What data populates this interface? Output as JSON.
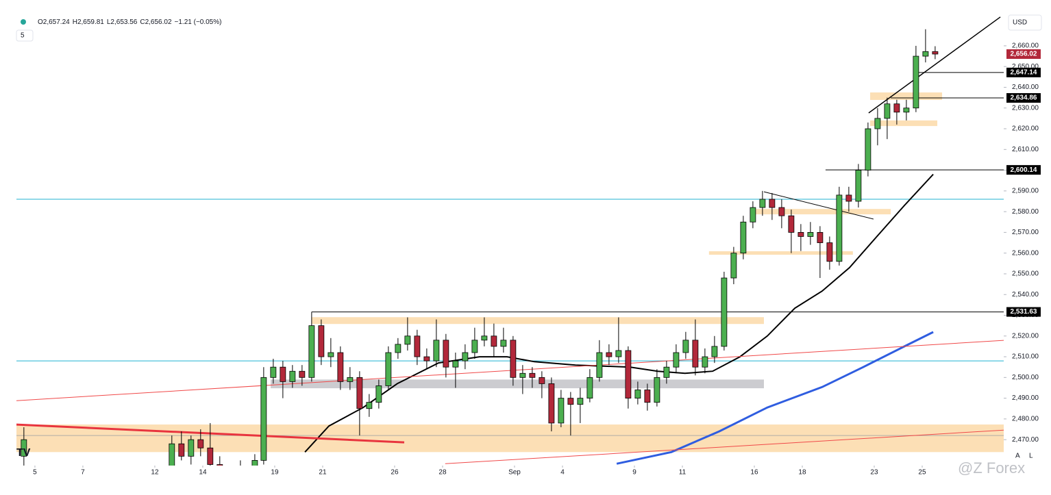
{
  "ui": {
    "interval": "5",
    "currency": "USD",
    "watermark": "@Z Forex",
    "scale_auto": "A",
    "scale_log": "L"
  },
  "chart_data": {
    "type": "candlestick",
    "header": [
      "O2,657.24",
      "H2,659.81",
      "L2,653.56",
      "C2,656.02",
      "−1.21 (−0.05%)"
    ],
    "xlim": [
      -0.77,
      40.4
    ],
    "ylim": [
      2457.5,
      2675.5
    ],
    "xticks": [
      {
        "value": 0,
        "label": "5"
      },
      {
        "value": 2,
        "label": "7"
      },
      {
        "value": 5,
        "label": "12"
      },
      {
        "value": 7,
        "label": "14"
      },
      {
        "value": 10,
        "label": "19"
      },
      {
        "value": 12,
        "label": "21"
      },
      {
        "value": 15,
        "label": "26"
      },
      {
        "value": 17,
        "label": "28"
      },
      {
        "value": 20,
        "label": "Sep"
      },
      {
        "value": 22,
        "label": "4"
      },
      {
        "value": 25,
        "label": "9"
      },
      {
        "value": 27,
        "label": "11"
      },
      {
        "value": 30,
        "label": "16"
      },
      {
        "value": 32,
        "label": "18"
      },
      {
        "value": 35,
        "label": "23"
      },
      {
        "value": 37,
        "label": "25"
      }
    ],
    "yticks": [
      {
        "value": 2470,
        "label": "2,470.00"
      },
      {
        "value": 2480,
        "label": "2,480.00"
      },
      {
        "value": 2490,
        "label": "2,490.00"
      },
      {
        "value": 2500,
        "label": "2,500.00"
      },
      {
        "value": 2510,
        "label": "2,510.00"
      },
      {
        "value": 2520,
        "label": "2,520.00"
      },
      {
        "value": 2530,
        "label": "2,530.00"
      },
      {
        "value": 2540,
        "label": "2,540.00"
      },
      {
        "value": 2550,
        "label": "2,550.00"
      },
      {
        "value": 2560,
        "label": "2,560.00"
      },
      {
        "value": 2570,
        "label": "2,570.00"
      },
      {
        "value": 2580,
        "label": "2,580.00"
      },
      {
        "value": 2590,
        "label": "2,590.00"
      },
      {
        "value": 2600,
        "label": "2,600.00"
      },
      {
        "value": 2610,
        "label": "2,610.00"
      },
      {
        "value": 2620,
        "label": "2,620.00"
      },
      {
        "value": 2630,
        "label": "2,630.00"
      },
      {
        "value": 2640,
        "label": "2,640.00"
      },
      {
        "value": 2650,
        "label": "2,650.00"
      },
      {
        "value": 2660,
        "label": "2,660.00"
      }
    ],
    "up_color": "#4caf50",
    "down_color": "#b2283a",
    "x": [
      -0.46,
      5.71,
      6.11,
      6.51,
      6.91,
      7.31,
      7.71,
      8.57,
      9.17,
      9.54,
      9.94,
      10.34,
      10.74,
      11.14,
      11.54,
      11.94,
      12.34,
      12.74,
      13.14,
      13.54,
      13.94,
      14.34,
      14.74,
      15.14,
      15.54,
      15.94,
      16.34,
      16.74,
      17.14,
      17.54,
      17.94,
      18.34,
      18.74,
      19.14,
      19.54,
      19.94,
      20.34,
      20.74,
      21.14,
      21.54,
      21.94,
      22.34,
      22.74,
      23.14,
      23.54,
      23.94,
      24.34,
      24.74,
      25.14,
      25.54,
      25.94,
      26.34,
      26.74,
      27.14,
      27.54,
      27.94,
      28.34,
      28.74,
      29.14,
      29.54,
      29.94,
      30.34,
      30.74,
      31.14,
      31.54,
      31.94,
      32.34,
      32.74,
      33.14,
      33.54,
      33.94,
      34.34,
      34.74,
      35.14,
      35.54,
      35.94,
      36.34,
      36.74,
      37.14,
      37.54
    ],
    "open": [
      2462,
      2455,
      2468,
      2462,
      2470,
      2466,
      2458,
      2445,
      2455,
      2460,
      2500,
      2505,
      2498,
      2503,
      2500,
      2525,
      2510,
      2512,
      2498,
      2500,
      2485,
      2488,
      2496,
      2512,
      2516,
      2520,
      2510,
      2508,
      2518,
      2505,
      2508,
      2512,
      2518,
      2520,
      2515,
      2518,
      2500,
      2502,
      2500,
      2497,
      2478,
      2490,
      2487,
      2490,
      2500,
      2512,
      2510,
      2513,
      2490,
      2494,
      2488,
      2500,
      2505,
      2512,
      2518,
      2505,
      2510,
      2515,
      2548,
      2560,
      2575,
      2582,
      2586,
      2582,
      2578,
      2570,
      2568,
      2570,
      2565,
      2556,
      2588,
      2585,
      2600,
      2620,
      2625,
      2632,
      2628,
      2630,
      2655,
      2657.24
    ],
    "high": [
      2476,
      2472,
      2474,
      2472,
      2475,
      2478,
      2462,
      2460,
      2463,
      2505,
      2509,
      2508,
      2506,
      2506,
      2531.63,
      2528,
      2519,
      2515,
      2505,
      2503,
      2492,
      2499,
      2515,
      2519,
      2529,
      2523,
      2514,
      2528,
      2521,
      2512,
      2516,
      2524,
      2529,
      2526,
      2524,
      2520,
      2506,
      2505,
      2503,
      2500,
      2494,
      2493,
      2495,
      2504,
      2518,
      2516,
      2529,
      2515,
      2498,
      2497,
      2504,
      2508,
      2516,
      2522,
      2528,
      2514,
      2520,
      2551,
      2563,
      2578,
      2585,
      2590,
      2589,
      2586,
      2581,
      2574,
      2575,
      2573,
      2568,
      2592,
      2592,
      2603,
      2623,
      2630,
      2635,
      2634,
      2634,
      2660,
      2668,
      2659.81
    ],
    "low": [
      2455,
      2450,
      2460,
      2458,
      2462,
      2455,
      2440,
      2440,
      2448,
      2458,
      2497,
      2490,
      2495,
      2496,
      2498,
      2506,
      2505,
      2494,
      2494,
      2472,
      2481,
      2485,
      2494,
      2509,
      2513,
      2506,
      2504,
      2505,
      2500,
      2495,
      2504,
      2509,
      2515,
      2510,
      2512,
      2496,
      2492,
      2495,
      2490,
      2474,
      2476,
      2472,
      2478,
      2488,
      2498,
      2506,
      2507,
      2485,
      2487,
      2484,
      2486,
      2497,
      2502,
      2509,
      2501,
      2502,
      2507,
      2513,
      2545,
      2557,
      2572,
      2578,
      2576,
      2572,
      2560,
      2561,
      2564,
      2548,
      2552,
      2554,
      2580,
      2582,
      2597,
      2612,
      2615,
      2622,
      2624,
      2628,
      2652,
      2653.56
    ],
    "close": [
      2470,
      2468,
      2462,
      2470,
      2466,
      2458,
      2445,
      2455,
      2460,
      2500,
      2505,
      2498,
      2503,
      2500,
      2525,
      2510,
      2512,
      2498,
      2500,
      2485,
      2488,
      2496,
      2512,
      2516,
      2520,
      2510,
      2508,
      2518,
      2505,
      2508,
      2512,
      2518,
      2520,
      2515,
      2518,
      2500,
      2502,
      2500,
      2497,
      2478,
      2490,
      2487,
      2490,
      2500,
      2512,
      2510,
      2513,
      2490,
      2494,
      2488,
      2500,
      2505,
      2512,
      2518,
      2505,
      2510,
      2515,
      2548,
      2560,
      2575,
      2582,
      2586,
      2582,
      2578,
      2570,
      2568,
      2570,
      2565,
      2556,
      2588,
      2585,
      2600,
      2620,
      2625,
      2632,
      2628,
      2630,
      2655,
      2657.24,
      2656.02
    ],
    "last_price_label": "2,656.02",
    "zones": [
      {
        "x": [
          -0.77,
          40.4
        ],
        "y": [
          2477.3,
          2464
        ],
        "color": "#fcd9a8"
      },
      {
        "x": [
          11.54,
          30.4
        ],
        "y": [
          2529.1,
          2525.8
        ],
        "color": "#fcd9a8"
      },
      {
        "x": [
          9.83,
          30.4
        ],
        "y": [
          2499,
          2494.8
        ],
        "color": "#c3c3c8"
      },
      {
        "x": [
          28.11,
          34.11
        ],
        "y": [
          2560.9,
          2559.2
        ],
        "color": "#fcd9a8"
      },
      {
        "x": [
          29.83,
          35.69
        ],
        "y": [
          2581.3,
          2578.7
        ],
        "color": "#fcd9a8"
      },
      {
        "x": [
          34.83,
          37.83
        ],
        "y": [
          2637.5,
          2633.9
        ],
        "color": "#fcd9a8"
      },
      {
        "x": [
          34.83,
          37.63
        ],
        "y": [
          2624,
          2621.3
        ],
        "color": "#fcd9a8"
      }
    ],
    "hlines": [
      {
        "value": 2647.14,
        "label": "2,647.14",
        "x_start": 36.83,
        "color": "#000000"
      },
      {
        "value": 2634.86,
        "label": "2,634.86",
        "x_start": 35.69,
        "color": "#000000"
      },
      {
        "value": 2600.14,
        "label": "2,600.14",
        "x_start": 32.97,
        "color": "#000000"
      },
      {
        "value": 2531.63,
        "label": "2,531.63",
        "x_start": 11.54,
        "color": "#000000"
      },
      {
        "value": 2586,
        "x_start": -0.77,
        "color": "#1fb2d1"
      },
      {
        "value": 2508,
        "x_start": -0.77,
        "color": "#1fb2d1"
      },
      {
        "value": 2472,
        "x_start": -0.77,
        "color": "#b0aea8"
      }
    ],
    "lines": [
      {
        "color": "#000000",
        "width": 2,
        "x": [
          11.26,
          12.26,
          13.69,
          15.11,
          16.83,
          18.54,
          19.69,
          20.83,
          22.54,
          24.83,
          25.97,
          27.11,
          28.26,
          29.4,
          30.54,
          31.69,
          32.83,
          33.97,
          35.11,
          36.26,
          37.46
        ],
        "y": [
          2464,
          2476.6,
          2485.5,
          2497,
          2507,
          2510,
          2510,
          2507.6,
          2506,
          2505,
          2503,
          2502,
          2503,
          2510,
          2520,
          2533.4,
          2541.7,
          2553,
          2568,
          2583,
          2598
        ]
      },
      {
        "color": "#2f5de0",
        "width": 3,
        "x": [
          24.26,
          26.54,
          28.54,
          30.54,
          32.83,
          34.54,
          36.26,
          37.46
        ],
        "y": [
          2458.4,
          2464,
          2474,
          2485.5,
          2495.4,
          2505,
          2515,
          2521.9
        ]
      },
      {
        "color": "#f04848",
        "width": 1,
        "x": [
          -0.77,
          40.4
        ],
        "y": [
          2488.8,
          2517.9
        ]
      },
      {
        "color": "#f04848",
        "width": 1,
        "x": [
          17.11,
          40.4
        ],
        "y": [
          2458.4,
          2474.6
        ]
      },
      {
        "color": "#e8343e",
        "width": 3,
        "x": [
          -0.77,
          15.4
        ],
        "y": [
          2477.3,
          2468.7
        ]
      },
      {
        "color": "#000000",
        "width": 1.5,
        "x": [
          34.77,
          40.26
        ],
        "y": [
          2627.6,
          2673.9
        ]
      },
      {
        "color": "#000000",
        "width": 1,
        "x": [
          30.4,
          34.97
        ],
        "y": [
          2589.6,
          2576.4
        ]
      }
    ]
  }
}
